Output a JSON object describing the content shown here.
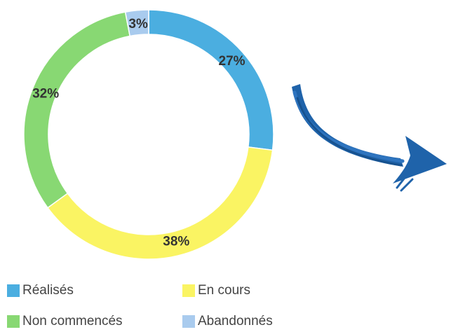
{
  "chart_data": {
    "type": "pie",
    "variant": "donut",
    "slices": [
      {
        "label": "Réalisés",
        "value": 27,
        "display": "27%",
        "color": "#4BAEE0"
      },
      {
        "label": "En cours",
        "value": 38,
        "display": "38%",
        "color": "#FAF463"
      },
      {
        "label": "Non commencés",
        "value": 32,
        "display": "32%",
        "color": "#88D873"
      },
      {
        "label": "Abandonnés",
        "value": 3,
        "display": "3%",
        "color": "#A9CBEE"
      }
    ],
    "start": "top, clockwise",
    "legend_position": "bottom",
    "decoration": {
      "name": "curved-arrow-icon",
      "color": "#1F63AA"
    }
  }
}
